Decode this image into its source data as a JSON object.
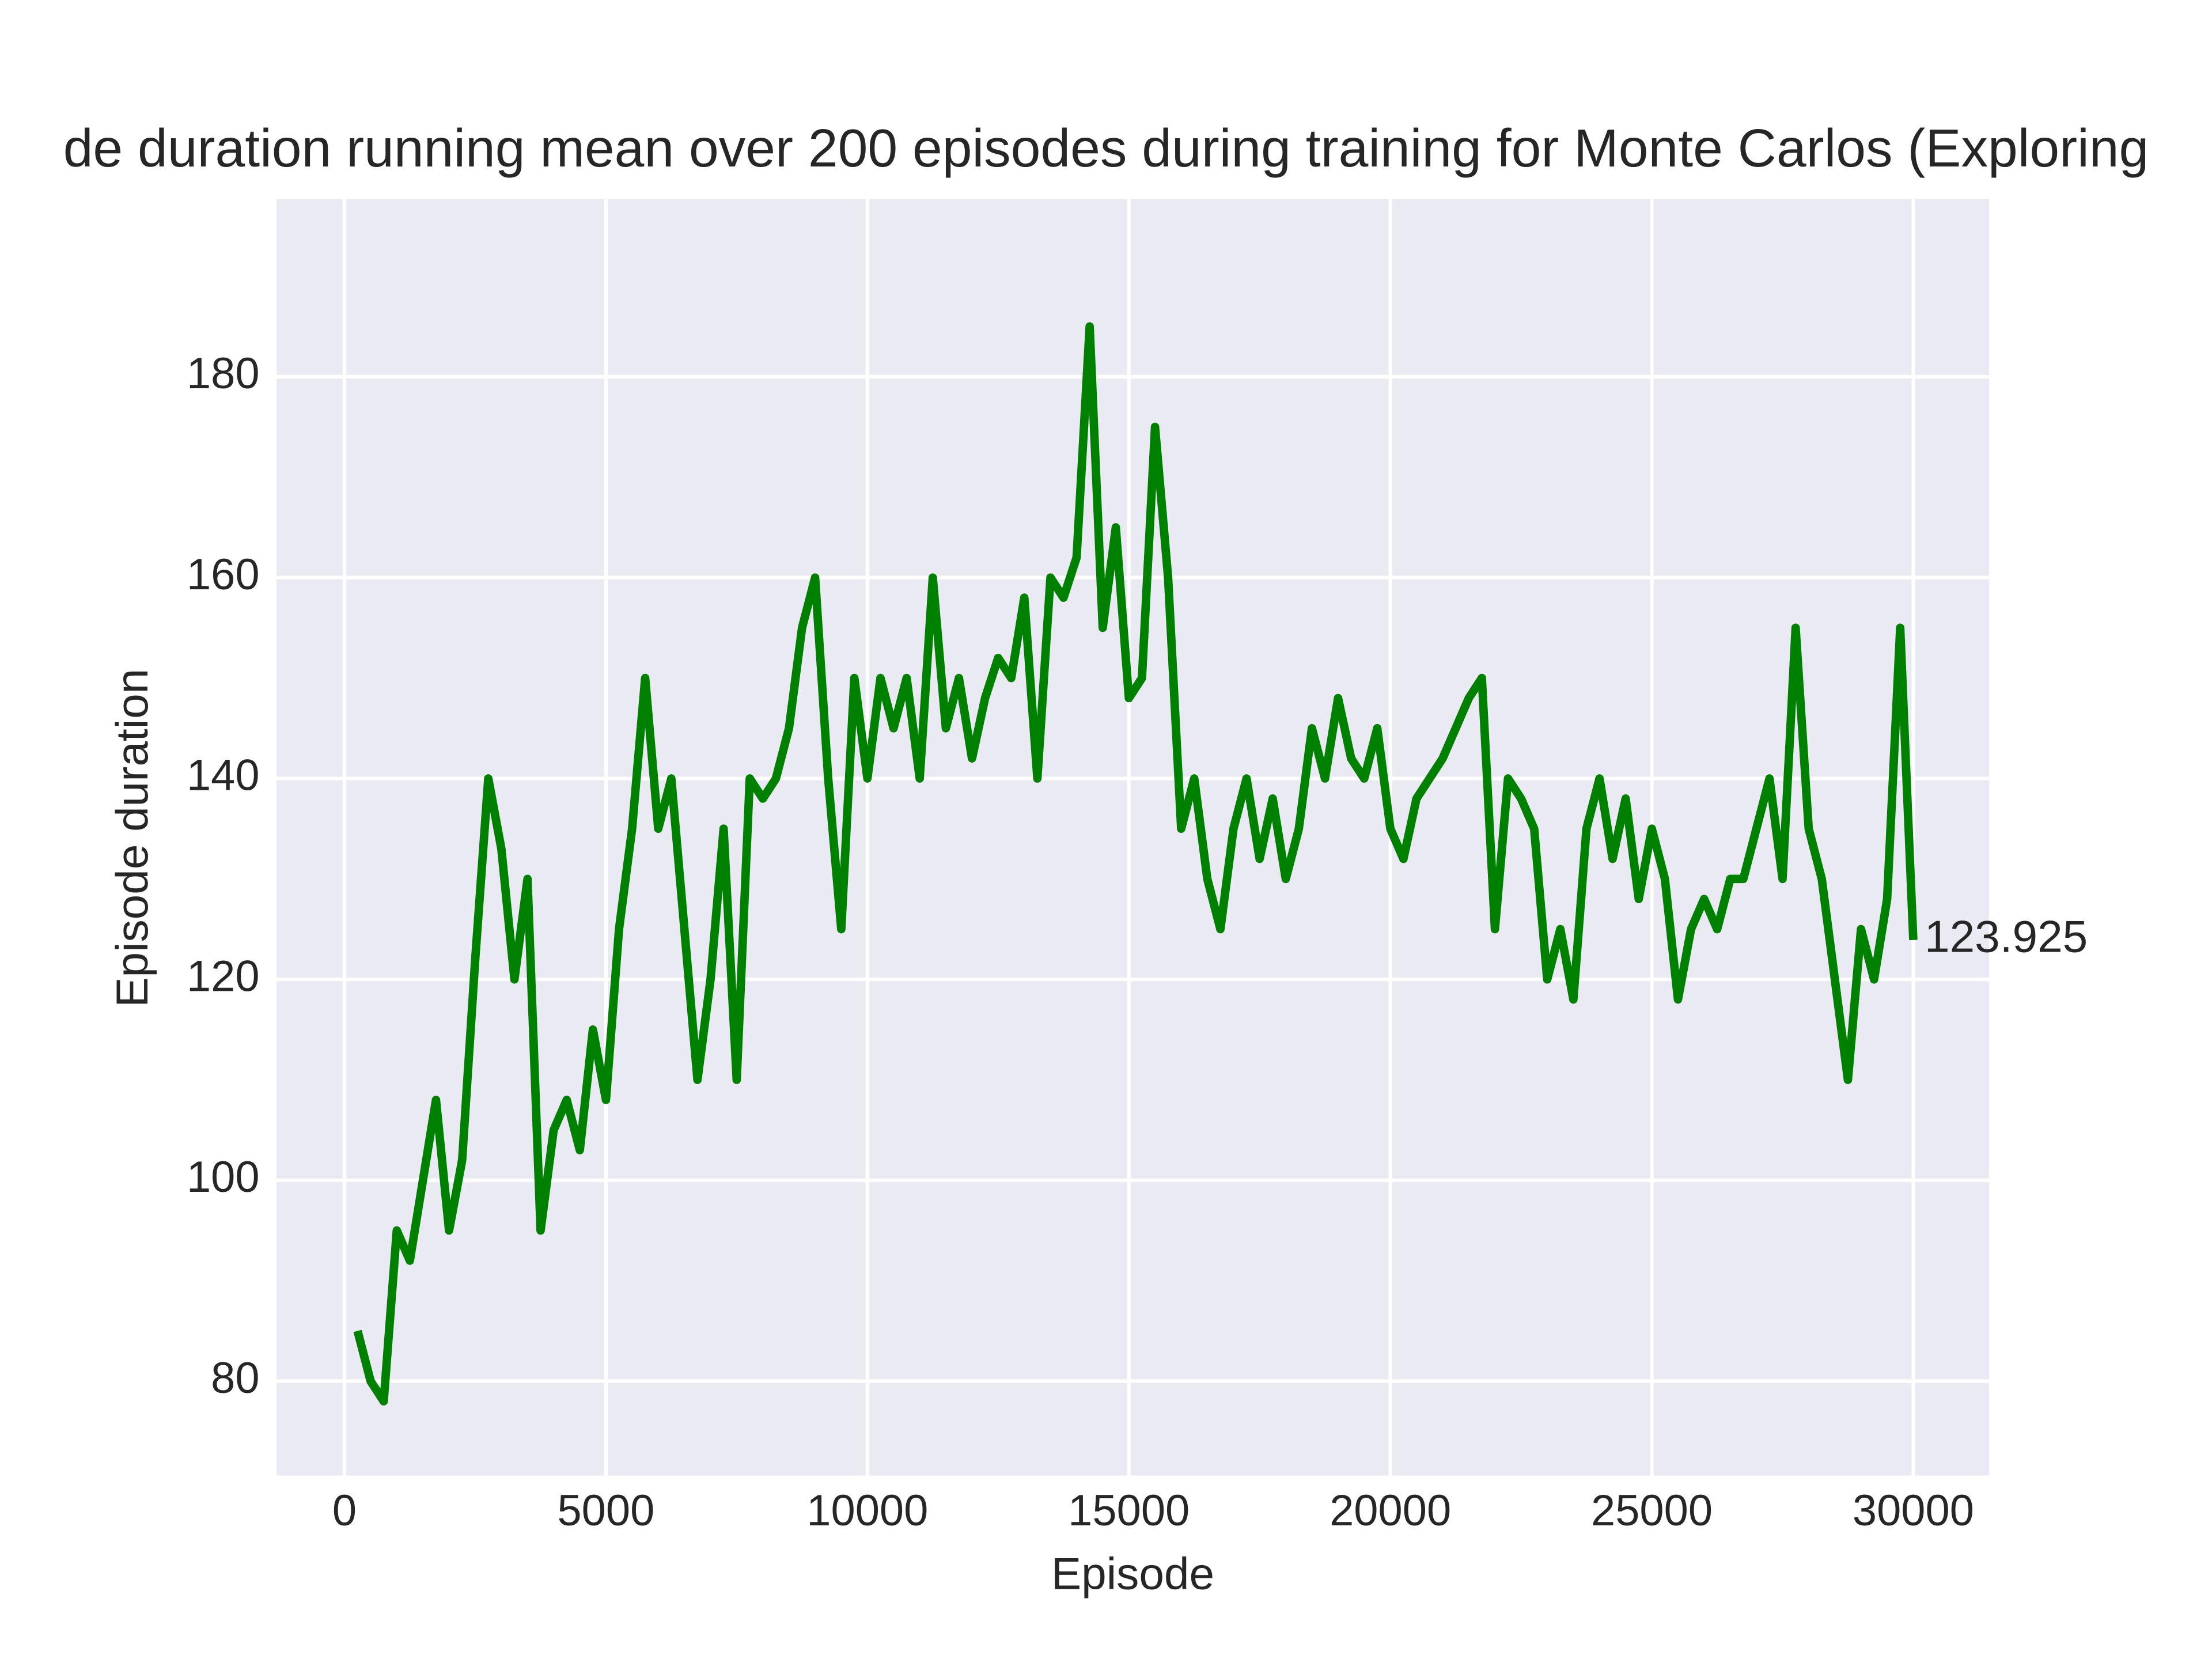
{
  "chart_data": {
    "type": "line",
    "title": "de duration running mean over 200 episodes during training for Monte Carlos (Exploring",
    "x_label": "Episode",
    "y_label": "Episode duration",
    "color": "#008000",
    "grid": true,
    "label_last": true,
    "xlim": [
      -1300,
      31450
    ],
    "ylim": [
      70.6,
      197.7
    ],
    "xticks": [
      0,
      5000,
      10000,
      15000,
      20000,
      25000,
      30000
    ],
    "yticks": [
      80,
      100,
      120,
      140,
      160,
      180
    ],
    "x": [
      250,
      500,
      750,
      1000,
      1250,
      1500,
      1750,
      2000,
      2250,
      2500,
      2750,
      3000,
      3250,
      3500,
      3750,
      4000,
      4250,
      4500,
      4750,
      5000,
      5250,
      5500,
      5750,
      6000,
      6250,
      6500,
      6750,
      7000,
      7250,
      7500,
      7750,
      8000,
      8250,
      8500,
      8750,
      9000,
      9250,
      9500,
      9750,
      10000,
      10250,
      10500,
      10750,
      11000,
      11250,
      11500,
      11750,
      12000,
      12250,
      12500,
      12750,
      13000,
      13250,
      13500,
      13750,
      14000,
      14250,
      14500,
      14750,
      15000,
      15250,
      15500,
      15750,
      16000,
      16250,
      16500,
      16750,
      17000,
      17250,
      17500,
      17750,
      18000,
      18250,
      18500,
      18750,
      19000,
      19250,
      19500,
      19750,
      20000,
      20250,
      20500,
      20750,
      21000,
      21250,
      21500,
      21750,
      22000,
      22250,
      22500,
      22750,
      23000,
      23250,
      23500,
      23750,
      24000,
      24250,
      24500,
      24750,
      25000,
      25250,
      25500,
      25750,
      26000,
      26250,
      26500,
      26750,
      27000,
      27250,
      27500,
      27750,
      28000,
      28250,
      28500,
      28750,
      29000,
      29250,
      29500,
      29750,
      30000
    ],
    "values": [
      85,
      80,
      78,
      95,
      92,
      100,
      108,
      95,
      102,
      122,
      140,
      133,
      120,
      130,
      95,
      105,
      108,
      103,
      115,
      108,
      125,
      135,
      150,
      135,
      140,
      125,
      110,
      120,
      135,
      110,
      140,
      138,
      140,
      145,
      155,
      160,
      140,
      125,
      150,
      140,
      150,
      145,
      150,
      140,
      160,
      145,
      150,
      142,
      148,
      152,
      150,
      158,
      140,
      160,
      158,
      162,
      185,
      155,
      165,
      148,
      150,
      175,
      160,
      135,
      140,
      130,
      125,
      135,
      140,
      132,
      138,
      130,
      135,
      145,
      140,
      148,
      142,
      140,
      145,
      135,
      132,
      138,
      140,
      142,
      145,
      148,
      150,
      125,
      140,
      138,
      135,
      120,
      125,
      118,
      135,
      140,
      132,
      138,
      128,
      135,
      130,
      118,
      125,
      128,
      125,
      130,
      130,
      135,
      140,
      130,
      155,
      135,
      130,
      120,
      110,
      125,
      120,
      128,
      155,
      123.925
    ]
  }
}
